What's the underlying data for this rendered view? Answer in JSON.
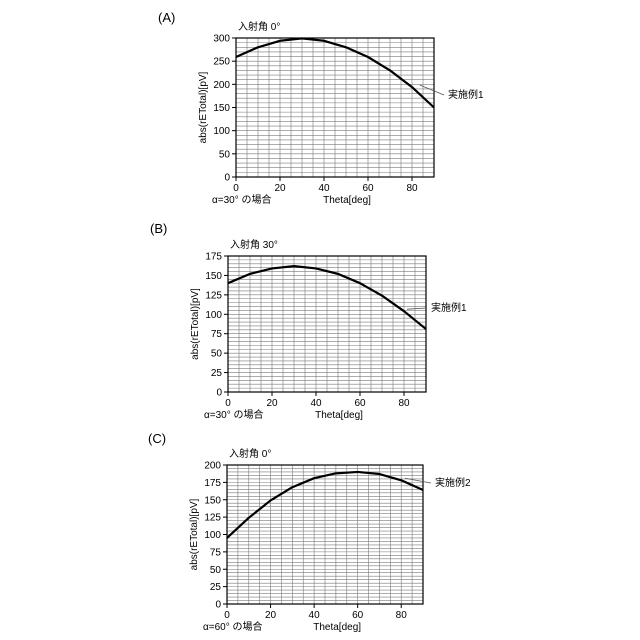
{
  "chart_data": [
    {
      "type": "line",
      "panel_label": "(A)",
      "title": "入射角 0°",
      "xlabel": "Theta[deg]",
      "ylabel": "abs(rETotal)[pV]",
      "note": "α=30° の場合",
      "xlim": [
        0,
        90
      ],
      "ylim": [
        0,
        300
      ],
      "xticks": [
        0,
        20,
        40,
        60,
        80
      ],
      "yticks": [
        0,
        50,
        100,
        150,
        200,
        250,
        300
      ],
      "x_minor_step": 5,
      "y_minor_step": 10,
      "grid": true,
      "series": [
        {
          "name": "実施例1",
          "x": [
            0,
            10,
            20,
            30,
            40,
            50,
            60,
            70,
            80,
            90
          ],
          "y": [
            259,
            280,
            294,
            299,
            294,
            280,
            259,
            230,
            194,
            150
          ]
        }
      ]
    },
    {
      "type": "line",
      "panel_label": "(B)",
      "title": "入射角 30°",
      "xlabel": "Theta[deg]",
      "ylabel": "abs(rETotal)[pV]",
      "note": "α=30° の場合",
      "xlim": [
        0,
        90
      ],
      "ylim": [
        0,
        175
      ],
      "xticks": [
        0,
        20,
        40,
        60,
        80
      ],
      "yticks": [
        0,
        25,
        50,
        75,
        100,
        125,
        150,
        175
      ],
      "x_minor_step": 5,
      "y_minor_step": 5,
      "grid": true,
      "series": [
        {
          "name": "実施例1",
          "x": [
            0,
            10,
            20,
            30,
            40,
            50,
            60,
            70,
            80,
            90
          ],
          "y": [
            140,
            152,
            159,
            162,
            159,
            152,
            140,
            124,
            104,
            81
          ]
        }
      ]
    },
    {
      "type": "line",
      "panel_label": "(C)",
      "title": "入射角 0°",
      "xlabel": "Theta[deg]",
      "ylabel": "abs(rETotal)[pV]",
      "note": "α=60° の場合",
      "xlim": [
        0,
        90
      ],
      "ylim": [
        0,
        200
      ],
      "xticks": [
        0,
        20,
        40,
        60,
        80
      ],
      "yticks": [
        0,
        25,
        50,
        75,
        100,
        125,
        150,
        175,
        200
      ],
      "x_minor_step": 5,
      "y_minor_step": 5,
      "grid": true,
      "series": [
        {
          "name": "実施例2",
          "x": [
            0,
            10,
            20,
            30,
            40,
            50,
            60,
            70,
            80,
            90
          ],
          "y": [
            95,
            124,
            149,
            168,
            181,
            188,
            190,
            187,
            178,
            164
          ]
        }
      ]
    }
  ]
}
